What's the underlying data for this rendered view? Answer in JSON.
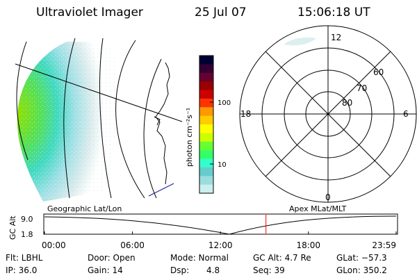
{
  "header": {
    "instrument": "Ultraviolet Imager",
    "date": "25 Jul 07",
    "time": "15:06:18 UT"
  },
  "colorbar": {
    "unit_label": "photon cm⁻²s⁻¹",
    "ticks": [
      "100",
      "10"
    ],
    "colors": [
      "#000033",
      "#330033",
      "#660033",
      "#990000",
      "#cc0000",
      "#ff3300",
      "#ff9900",
      "#ffcc00",
      "#ffff00",
      "#ccff00",
      "#66ff33",
      "#33ff66",
      "#33ffcc",
      "#66cccc",
      "#99dddd",
      "#cceeee"
    ]
  },
  "polar_plot": {
    "mlt_labels": {
      "top": "12",
      "right": "6",
      "bottom": "0",
      "left": "18"
    },
    "lat_labels": [
      "60",
      "70",
      "80"
    ]
  },
  "timeline": {
    "left_title": "Geographic Lat/Lon",
    "right_title": "Apex MLat/MLT",
    "ylabel": "GC Alt",
    "y_ticks": [
      "9.0",
      "1.8"
    ],
    "x_ticks": [
      "00:00",
      "06:00",
      "12:00",
      "18:00",
      "23:59"
    ],
    "marker_time": "15:06:18",
    "marker_color": "#ff0000"
  },
  "status": {
    "filter": "Flt: LBHL",
    "door": "Door: Open",
    "mode": "Mode: Normal",
    "gc_alt": "GC Alt: 4.7 Re",
    "glat": "GLat: −57.3",
    "ip": "IP: 36.0",
    "gain": "Gain: 14",
    "dsp_label": "Dsp:",
    "dsp_value": "4.8",
    "seq": "Seq: 39",
    "glon": "GLon: 350.2"
  }
}
